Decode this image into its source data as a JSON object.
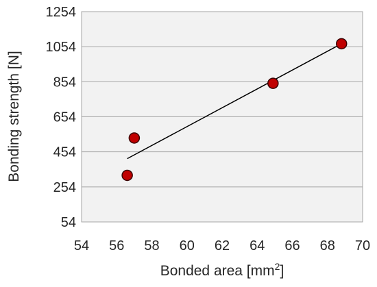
{
  "chart_data": {
    "type": "scatter",
    "title": "",
    "xlabel_main": "Bonded area [mm",
    "xlabel_sup": "2",
    "xlabel_close": "]",
    "ylabel": "Bonding strength [N]",
    "x_ticks": [
      "54",
      "56",
      "58",
      "60",
      "62",
      "64",
      "66",
      "68",
      "70"
    ],
    "y_ticks": [
      "54",
      "254",
      "454",
      "654",
      "854",
      "1054",
      "1254"
    ],
    "xlim": [
      54,
      70
    ],
    "ylim": [
      54,
      1254
    ],
    "grid": "horizontal",
    "legend": "none",
    "points": [
      {
        "x": 56.6,
        "y": 320
      },
      {
        "x": 57.0,
        "y": 533
      },
      {
        "x": 64.9,
        "y": 845
      },
      {
        "x": 68.8,
        "y": 1071
      }
    ],
    "trendline": {
      "x": [
        56.6,
        68.8
      ],
      "y": [
        415,
        1071
      ]
    },
    "colors": {
      "plot_background": "#f2f2f2",
      "marker_fill": "#c00000",
      "marker_edge": "#3a0000",
      "gridline": "#a6a6a6",
      "trendline": "#000000"
    }
  }
}
